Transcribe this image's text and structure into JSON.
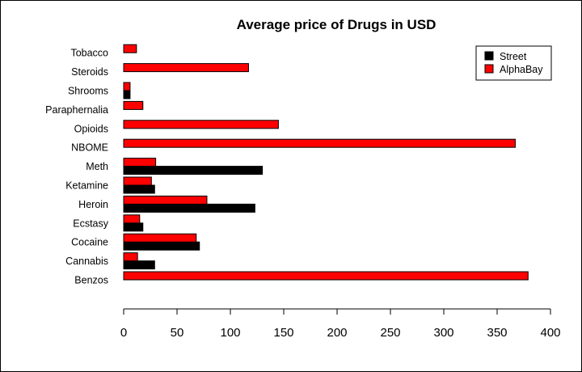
{
  "chart_data": {
    "type": "bar",
    "orientation": "horizontal",
    "title": "Average price of Drugs in USD",
    "xlabel": "",
    "ylabel": "",
    "xlim": [
      0,
      400
    ],
    "x_ticks": [
      0,
      50,
      100,
      150,
      200,
      250,
      300,
      350,
      400
    ],
    "categories": [
      "Benzos",
      "Cannabis",
      "Cocaine",
      "Ecstasy",
      "Heroin",
      "Ketamine",
      "Meth",
      "NBOME",
      "Opioids",
      "Paraphernalia",
      "Shrooms",
      "Steroids",
      "Tobacco"
    ],
    "series": [
      {
        "name": "Street",
        "color": "#000000",
        "values": [
          null,
          29,
          71,
          18,
          123,
          29,
          130,
          null,
          null,
          null,
          6,
          null,
          null
        ]
      },
      {
        "name": "AlphaBay",
        "color": "#ff0000",
        "values": [
          379,
          13,
          68,
          15,
          78,
          26,
          30,
          367,
          145,
          18,
          6,
          117,
          12
        ]
      }
    ],
    "legend": "top-right",
    "grid": false
  }
}
